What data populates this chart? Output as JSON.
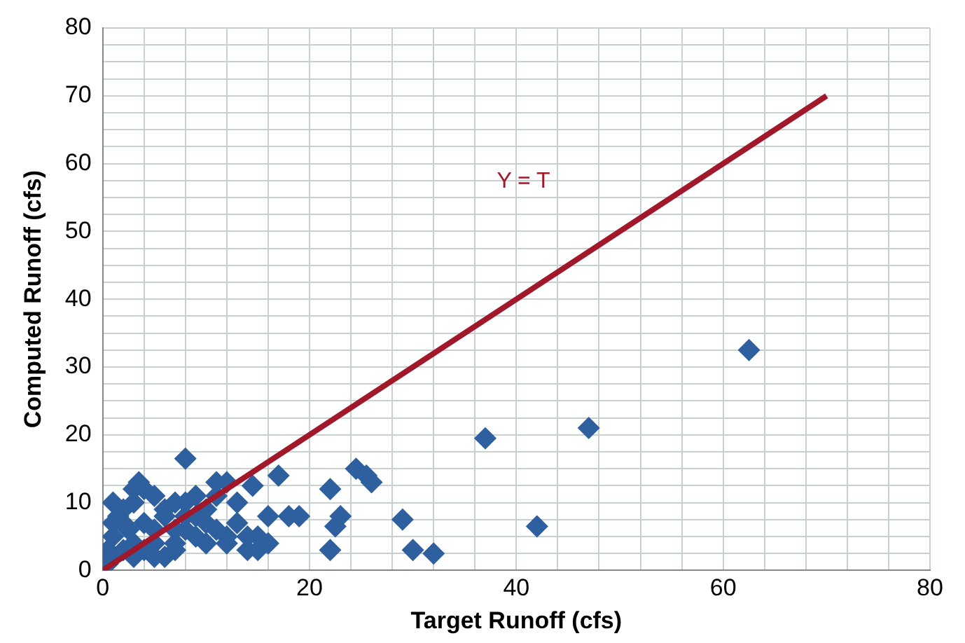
{
  "chart_data": {
    "type": "scatter",
    "xlabel": "Target Runoff (cfs)",
    "ylabel": "Computed Runoff (cfs)",
    "xlim": [
      0,
      80
    ],
    "ylim": [
      0,
      80
    ],
    "xticks": [
      0,
      {
        "value": 4,
        "label": null
      },
      {
        "value": 8,
        "label": null
      },
      {
        "value": 12,
        "label": null
      },
      {
        "value": 16,
        "label": null
      },
      20,
      {
        "value": 24,
        "label": null
      },
      {
        "value": 28,
        "label": null
      },
      {
        "value": 32,
        "label": null
      },
      {
        "value": 36,
        "label": null
      },
      40,
      {
        "value": 44,
        "label": null
      },
      {
        "value": 48,
        "label": null
      },
      {
        "value": 52,
        "label": null
      },
      {
        "value": 56,
        "label": null
      },
      60,
      {
        "value": 64,
        "label": null
      },
      {
        "value": 68,
        "label": null
      },
      {
        "value": 72,
        "label": null
      },
      {
        "value": 76,
        "label": null
      },
      80
    ],
    "yticks": [
      0,
      {
        "value": 2.5,
        "label": null
      },
      {
        "value": 5,
        "label": null
      },
      {
        "value": 7.5,
        "label": null
      },
      10,
      {
        "value": 12.5,
        "label": null
      },
      {
        "value": 15,
        "label": null
      },
      {
        "value": 17.5,
        "label": null
      },
      20,
      {
        "value": 22.5,
        "label": null
      },
      {
        "value": 25,
        "label": null
      },
      {
        "value": 27.5,
        "label": null
      },
      30,
      {
        "value": 32.5,
        "label": null
      },
      {
        "value": 35,
        "label": null
      },
      {
        "value": 37.5,
        "label": null
      },
      40,
      {
        "value": 42.5,
        "label": null
      },
      {
        "value": 45,
        "label": null
      },
      {
        "value": 47.5,
        "label": null
      },
      50,
      {
        "value": 52.5,
        "label": null
      },
      {
        "value": 55,
        "label": null
      },
      {
        "value": 57.5,
        "label": null
      },
      60,
      {
        "value": 62.5,
        "label": null
      },
      {
        "value": 65,
        "label": null
      },
      {
        "value": 67.5,
        "label": null
      },
      70,
      {
        "value": 72.5,
        "label": null
      },
      {
        "value": 75,
        "label": null
      },
      {
        "value": 77.5,
        "label": null
      },
      80
    ],
    "grid": true,
    "legend": false,
    "series": [
      {
        "type": "scatter",
        "marker": "diamond",
        "color": "#2e5f9e",
        "x": [
          62.5,
          47,
          37,
          42,
          29,
          30,
          32,
          24.5,
          25.5,
          26,
          22,
          22,
          23,
          22.5,
          17,
          18,
          19,
          8,
          14.5,
          0.5,
          1,
          1.5,
          2,
          2.5,
          3,
          3.5,
          4,
          5,
          6,
          7,
          8,
          9,
          10,
          11,
          12,
          13,
          14,
          15,
          16,
          0.5,
          1,
          2,
          3,
          4,
          5,
          6,
          7,
          8,
          9,
          10,
          11,
          12,
          13,
          14,
          15,
          1,
          2,
          3,
          4,
          5,
          6,
          7,
          8,
          10,
          11,
          12,
          16,
          1,
          3,
          5,
          7,
          9
        ],
        "values": [
          32.5,
          21,
          19.5,
          6.5,
          7.5,
          3,
          2.5,
          15,
          14,
          13,
          12,
          3,
          8,
          6.5,
          14,
          8,
          8,
          16.5,
          12.5,
          3,
          5,
          8,
          9,
          6,
          4,
          13,
          7,
          11,
          9,
          4,
          6,
          11,
          4,
          13,
          13,
          7,
          3,
          5,
          4,
          1,
          2,
          3,
          2,
          3,
          4,
          2,
          3,
          8,
          5,
          9,
          6,
          4,
          10,
          5,
          3,
          10,
          7,
          10,
          12,
          6,
          8,
          6,
          10,
          7,
          11,
          5,
          8,
          7,
          12,
          2,
          10,
          8
        ]
      },
      {
        "type": "line",
        "marker": "none",
        "name": "Y = T",
        "color": "#a0182a",
        "x": [
          0,
          70
        ],
        "values": [
          0,
          70
        ]
      }
    ]
  }
}
